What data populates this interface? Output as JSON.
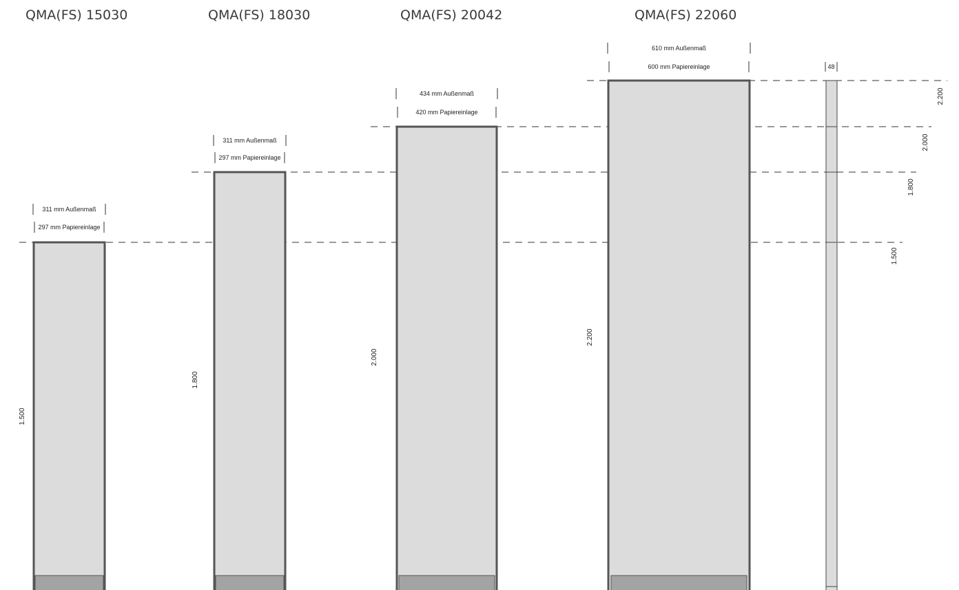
{
  "products": [
    {
      "title": "QMA(FS) 15030",
      "outer_label": "311 mm Außenmaß",
      "insert_label": "297 mm Papiereinlage",
      "height_label": "1.500"
    },
    {
      "title": "QMA(FS) 18030",
      "outer_label": "311 mm Außenmaß",
      "insert_label": "297 mm Papiereinlage",
      "height_label": "1.800"
    },
    {
      "title": "QMA(FS) 20042",
      "outer_label": "434 mm Außenmaß",
      "insert_label": "420 mm Papiereinlage",
      "height_label": "2.000"
    },
    {
      "title": "QMA(FS) 22060",
      "outer_label": "610 mm Außenmaß",
      "insert_label": "600 mm Papiereinlage",
      "height_label": "2.200"
    }
  ],
  "post": {
    "width_label": "48",
    "height_labels": [
      "2.200",
      "2.000",
      "1.800",
      "1.500"
    ]
  }
}
